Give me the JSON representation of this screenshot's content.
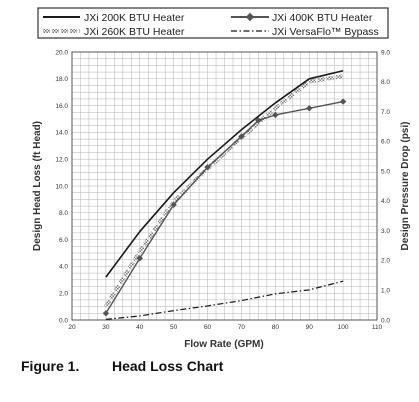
{
  "caption": {
    "figure_label": "Figure 1.",
    "figure_title": "Head Loss Chart"
  },
  "colors": {
    "grid": "#b3b3b3",
    "plot_border": "#555555",
    "series_dark": "#1a1a1a",
    "series_mid": "#555555",
    "series_light": "#8a8a8a"
  },
  "chart_data": {
    "type": "line",
    "title": "",
    "xlabel": "Flow Rate (GPM)",
    "ylabel": "Design Head Loss (ft Head)",
    "y2label": "Design Pressure Drop (psi)",
    "xlim": [
      20,
      110
    ],
    "ylim": [
      0,
      20
    ],
    "y2lim": [
      0,
      9
    ],
    "x_ticks": [
      "20",
      "30",
      "40",
      "50",
      "60",
      "70",
      "80",
      "90",
      "100",
      "110"
    ],
    "y_ticks": [
      "0.0",
      "2.0",
      "4.0",
      "6.0",
      "8.0",
      "10.0",
      "12.0",
      "14.0",
      "16.0",
      "18.0",
      "20.0"
    ],
    "y2_ticks": [
      "0.0",
      "1.0",
      "2.0",
      "3.0",
      "4.0",
      "5.0",
      "6.0",
      "7.0",
      "8.0",
      "9.0"
    ],
    "grid": true,
    "legend_position": "top",
    "series": [
      {
        "name": "JXi 200K BTU Heater",
        "style": "solid",
        "color": "#1a1a1a",
        "x": [
          30,
          40,
          50,
          60,
          70,
          80,
          90,
          100
        ],
        "y": [
          3.2,
          6.6,
          9.5,
          12.0,
          14.2,
          16.2,
          18.0,
          18.6
        ]
      },
      {
        "name": "JXi 400K BTU Heater",
        "style": "solid-diamond",
        "color": "#555555",
        "x": [
          30,
          40,
          50,
          60,
          70,
          75,
          80,
          90,
          100
        ],
        "y": [
          0.5,
          4.6,
          8.6,
          11.4,
          13.7,
          14.9,
          15.3,
          15.8,
          16.3
        ]
      },
      {
        "name": "JXi 260K BTU Heater",
        "style": "double-dashed",
        "color": "#8a8a8a",
        "x": [
          30,
          40,
          50,
          60,
          70,
          80,
          90,
          100
        ],
        "y": [
          1.0,
          5.1,
          8.8,
          11.3,
          13.6,
          15.8,
          17.8,
          18.2
        ]
      },
      {
        "name": "JXi VersaFlo™ Bypass",
        "style": "dash-dot",
        "color": "#1a1a1a",
        "x": [
          30,
          40,
          50,
          60,
          70,
          80,
          90,
          100
        ],
        "y": [
          0.05,
          0.3,
          0.7,
          1.05,
          1.45,
          1.95,
          2.25,
          2.9
        ]
      }
    ]
  }
}
